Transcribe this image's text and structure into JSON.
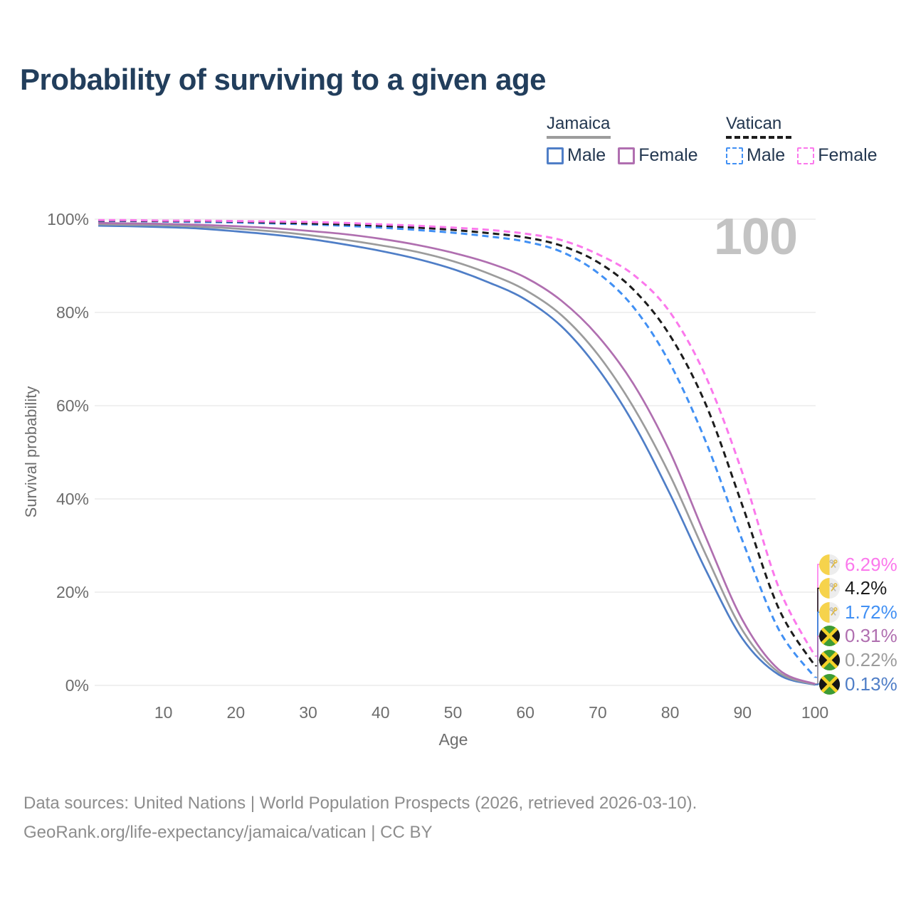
{
  "header": {
    "title": "Probability of surviving to a given age"
  },
  "legend": {
    "groups": [
      {
        "country": "Jamaica",
        "line_style": "solid",
        "combined_line_color": "#9c9c9c",
        "items": [
          {
            "label": "Male",
            "color": "#4f7ec7"
          },
          {
            "label": "Female",
            "color": "#b06fb0"
          }
        ]
      },
      {
        "country": "Vatican",
        "line_style": "dashed",
        "combined_line_color": "#1c1c1c",
        "items": [
          {
            "label": "Male",
            "color": "#4190f4"
          },
          {
            "label": "Female",
            "color": "#fb78ec"
          }
        ]
      }
    ]
  },
  "chart_data": {
    "type": "line",
    "title": "Probability of surviving to a given age",
    "xlabel": "Age",
    "ylabel": "Survival probability",
    "annotation": "100",
    "x_ticks": [
      10,
      20,
      30,
      40,
      50,
      60,
      70,
      80,
      90,
      100
    ],
    "y_ticks": [
      0,
      20,
      40,
      60,
      80,
      100
    ],
    "y_tick_suffix": "%",
    "xlim": [
      0.5,
      100
    ],
    "ylim": [
      0,
      100
    ],
    "grid": "horizontal",
    "legend_position": "top-right",
    "ages": [
      1,
      5,
      10,
      15,
      20,
      25,
      30,
      35,
      40,
      45,
      50,
      55,
      60,
      65,
      70,
      75,
      80,
      85,
      90,
      95,
      100
    ],
    "series": [
      {
        "name": "Jamaica Male",
        "country": "Jamaica",
        "sex": "Male",
        "style": "solid",
        "color": "#4f7ec7",
        "end_label": "0.13%",
        "values": [
          98.6,
          98.5,
          98.3,
          98.0,
          97.4,
          96.7,
          95.8,
          94.6,
          93.2,
          91.5,
          89.3,
          86.4,
          82.8,
          77.0,
          68.0,
          56.0,
          41.0,
          24.5,
          10.0,
          2.3,
          0.13
        ]
      },
      {
        "name": "Jamaica Both sexes",
        "country": "Jamaica",
        "sex": "Both",
        "style": "solid",
        "color": "#9c9c9c",
        "end_label": "0.22%",
        "values": [
          98.9,
          98.8,
          98.7,
          98.4,
          98.0,
          97.4,
          96.6,
          95.6,
          94.4,
          93.0,
          91.0,
          88.3,
          84.8,
          79.4,
          71.0,
          59.5,
          45.0,
          27.8,
          11.8,
          2.8,
          0.22
        ]
      },
      {
        "name": "Jamaica Female",
        "country": "Jamaica",
        "sex": "Female",
        "style": "solid",
        "color": "#b06fb0",
        "end_label": "0.31%",
        "values": [
          99.2,
          99.1,
          99.0,
          98.8,
          98.5,
          98.1,
          97.5,
          96.8,
          95.8,
          94.5,
          92.8,
          90.6,
          87.5,
          82.5,
          75.0,
          64.5,
          50.0,
          31.5,
          14.0,
          3.4,
          0.31
        ]
      },
      {
        "name": "Vatican Male",
        "country": "Vatican",
        "sex": "Male",
        "style": "dashed",
        "color": "#4190f4",
        "end_label": "1.72%",
        "values": [
          99.6,
          99.6,
          99.5,
          99.4,
          99.3,
          99.1,
          98.9,
          98.6,
          98.2,
          97.7,
          97.1,
          96.3,
          95.2,
          93.0,
          88.5,
          81.0,
          69.0,
          52.0,
          31.0,
          12.0,
          1.72
        ]
      },
      {
        "name": "Vatican Both sexes",
        "country": "Vatican",
        "sex": "Both",
        "style": "dashed",
        "color": "#1c1c1c",
        "end_label": "4.2%",
        "values": [
          99.7,
          99.7,
          99.6,
          99.6,
          99.5,
          99.3,
          99.1,
          98.9,
          98.6,
          98.2,
          97.7,
          97.0,
          96.1,
          94.3,
          90.8,
          84.8,
          75.0,
          60.0,
          38.5,
          16.5,
          4.2
        ]
      },
      {
        "name": "Vatican Female",
        "country": "Vatican",
        "sex": "Female",
        "style": "dashed",
        "color": "#fb78ec",
        "end_label": "6.29%",
        "values": [
          99.8,
          99.8,
          99.7,
          99.7,
          99.6,
          99.5,
          99.4,
          99.2,
          98.9,
          98.6,
          98.2,
          97.7,
          96.9,
          95.5,
          92.5,
          88.0,
          80.0,
          66.0,
          45.5,
          21.0,
          6.29
        ]
      }
    ],
    "colors": {
      "gridline": "#e8e8e8",
      "tick_text": "#6d6d6d",
      "watermark": "#c3c3c3",
      "flag_vatican_yellow": "#f6d34c",
      "flag_vatican_white": "#ededed",
      "flag_jamaica_green": "#3d9b35",
      "flag_jamaica_black": "#151515",
      "flag_jamaica_gold": "#f5d328"
    }
  },
  "footer": {
    "line1": "Data sources: United Nations | World Population Prospects (2026, retrieved 2026-03-10).",
    "line2": "GeoRank.org/life-expectancy/jamaica/vatican | CC BY"
  }
}
